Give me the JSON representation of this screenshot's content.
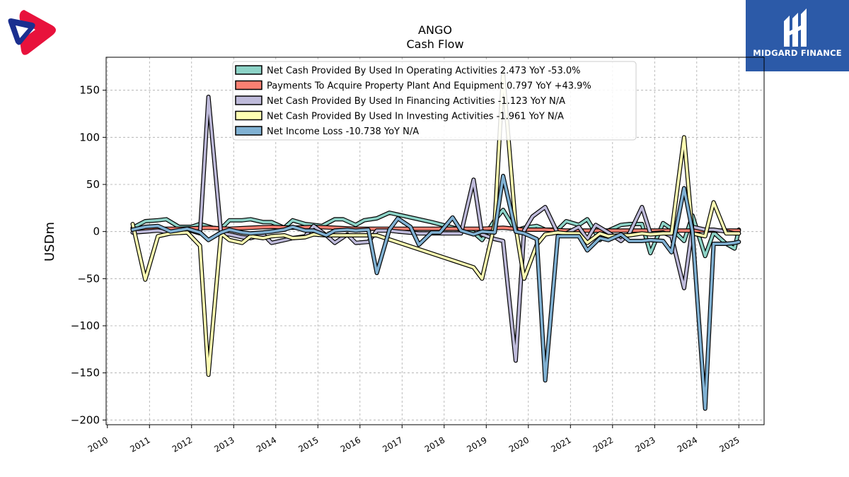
{
  "chart_data": {
    "type": "line",
    "title": "ANGO",
    "subtitle": "Cash Flow",
    "ylabel": "USDm",
    "xlabel": "",
    "xlim": [
      2009.97,
      2025.6
    ],
    "ylim": [
      -205,
      185
    ],
    "yticks": [
      150,
      100,
      50,
      0,
      -50,
      -100,
      -150,
      -200
    ],
    "ytick_labels": [
      "150",
      "100",
      "50",
      "0",
      "−50",
      "−100",
      "−150",
      "−200"
    ],
    "xticks": [
      2010,
      2011,
      2012,
      2013,
      2014,
      2015,
      2016,
      2017,
      2018,
      2019,
      2020,
      2021,
      2022,
      2023,
      2024,
      2025
    ],
    "xtick_labels": [
      "2010",
      "2011",
      "2012",
      "2013",
      "2014",
      "2015",
      "2016",
      "2017",
      "2018",
      "2019",
      "2020",
      "2021",
      "2022",
      "2023",
      "2024",
      "2025"
    ],
    "grid": true,
    "legend_position": "top-center",
    "series": [
      {
        "name": "Net Cash Provided By Used In Operating Activities",
        "legend_label": "Net Cash Provided By Used In Operating Activities  2.473 YoY -53.0%",
        "color": "#8dd3c7",
        "x": [
          2010.6,
          2010.9,
          2011.2,
          2011.4,
          2011.7,
          2012.0,
          2012.2,
          2012.5,
          2012.7,
          2012.9,
          2013.2,
          2013.4,
          2013.7,
          2013.9,
          2014.2,
          2014.4,
          2014.7,
          2014.9,
          2015.1,
          2015.4,
          2015.6,
          2015.9,
          2016.1,
          2016.4,
          2016.7,
          2016.9,
          2017.7,
          2018.4,
          2018.7,
          2018.9,
          2019.2,
          2019.4,
          2019.7,
          2019.9,
          2020.2,
          2020.4,
          2020.7,
          2020.9,
          2021.2,
          2021.4,
          2021.7,
          2021.9,
          2022.2,
          2022.4,
          2022.7,
          2022.9,
          2023.2,
          2023.4,
          2023.7,
          2023.9,
          2024.2,
          2024.4,
          2024.7,
          2024.9,
          2025.0
        ],
        "y": [
          4,
          11,
          12,
          13,
          5,
          5,
          8,
          4,
          3,
          12,
          12,
          13,
          10,
          10,
          4,
          12,
          8,
          7,
          6,
          13,
          13,
          7,
          12,
          14,
          20,
          18,
          10,
          2,
          -1,
          -9,
          12,
          23,
          1,
          4,
          6,
          2,
          2,
          11,
          7,
          13,
          -9,
          1,
          7,
          8,
          8,
          -23,
          9,
          3,
          -10,
          17,
          -26,
          -1,
          -13,
          -18,
          2
        ]
      },
      {
        "name": "Payments To Acquire Property Plant And Equipment",
        "legend_label": "Payments To Acquire Property Plant And Equipment  0.797 YoY +43.9%",
        "color": "#fb8072",
        "x": [
          2010.6,
          2011.2,
          2011.7,
          2012.4,
          2012.9,
          2013.4,
          2013.9,
          2014.4,
          2014.9,
          2015.4,
          2015.9,
          2016.4,
          2016.9,
          2017.4,
          2017.9,
          2018.4,
          2018.9,
          2019.4,
          2019.9,
          2020.4,
          2020.9,
          2021.4,
          2021.9,
          2022.4,
          2022.9,
          2023.4,
          2023.9,
          2024.4,
          2025.0
        ],
        "y": [
          3,
          3,
          3,
          4,
          3,
          4,
          5,
          4,
          5,
          4,
          3,
          3,
          3,
          3,
          3,
          3,
          3,
          4,
          2,
          2,
          1,
          1,
          1,
          1,
          1,
          1,
          1,
          1,
          1
        ]
      },
      {
        "name": "Net Cash Provided By Used In Financing Activities",
        "legend_label": "Net Cash Provided By Used In Financing Activities  -1.123 YoY N/A",
        "color": "#bebada",
        "x": [
          2010.6,
          2010.9,
          2011.2,
          2011.5,
          2011.9,
          2012.2,
          2012.4,
          2012.7,
          2012.9,
          2013.2,
          2013.4,
          2013.7,
          2013.9,
          2014.2,
          2014.4,
          2014.7,
          2014.9,
          2015.2,
          2015.4,
          2015.7,
          2015.9,
          2016.2,
          2016.4,
          2016.7,
          2016.9,
          2017.4,
          2017.9,
          2018.4,
          2018.7,
          2018.9,
          2019.2,
          2019.4,
          2019.7,
          2019.9,
          2020.1,
          2020.4,
          2020.7,
          2020.9,
          2021.2,
          2021.4,
          2021.6,
          2021.9,
          2022.2,
          2022.4,
          2022.7,
          2022.9,
          2023.2,
          2023.4,
          2023.7,
          2023.9,
          2024.2,
          2024.4,
          2024.7,
          2024.9,
          2025.0
        ],
        "y": [
          -1,
          0,
          1,
          -1,
          2,
          -2,
          143,
          -2,
          -3,
          -6,
          -7,
          -3,
          -12,
          -9,
          -7,
          -5,
          6,
          -4,
          -12,
          -3,
          -12,
          -11,
          1,
          1,
          0,
          -2,
          -2,
          -2,
          55,
          -3,
          -8,
          -10,
          -137,
          1,
          16,
          26,
          -2,
          -2,
          5,
          -8,
          7,
          -1,
          -10,
          -2,
          26,
          -2,
          -1,
          -5,
          -60,
          5,
          2,
          2,
          0,
          -2,
          -2
        ]
      },
      {
        "name": "Net Cash Provided By Used In Investing Activities",
        "legend_label": "Net Cash Provided By Used In Investing Activities  -1.961 YoY N/A",
        "color": "#ffffb3",
        "x": [
          2010.6,
          2010.9,
          2011.2,
          2011.5,
          2011.9,
          2012.2,
          2012.4,
          2012.7,
          2012.9,
          2013.2,
          2013.4,
          2013.7,
          2013.9,
          2014.2,
          2014.4,
          2014.7,
          2014.9,
          2015.2,
          2015.4,
          2015.7,
          2015.9,
          2016.4,
          2018.7,
          2018.9,
          2019.2,
          2019.4,
          2019.7,
          2019.9,
          2020.2,
          2020.4,
          2020.7,
          2020.9,
          2021.2,
          2021.4,
          2021.7,
          2021.9,
          2022.2,
          2022.4,
          2022.7,
          2022.9,
          2023.2,
          2023.4,
          2023.7,
          2023.9,
          2024.2,
          2024.4,
          2024.7,
          2024.9,
          2025.0
        ],
        "y": [
          8,
          -51,
          -5,
          -2,
          -1,
          -15,
          -152,
          -2,
          -9,
          -12,
          -5,
          -7,
          -5,
          -4,
          -7,
          -6,
          -3,
          -4,
          -4,
          -4,
          -4,
          -4,
          -38,
          -50,
          8,
          168,
          5,
          -50,
          -14,
          -3,
          -1,
          -2,
          -2,
          -12,
          -2,
          -5,
          -4,
          -4,
          -2,
          -3,
          -2,
          -2,
          100,
          -2,
          -5,
          31,
          -2,
          -2,
          -2
        ]
      },
      {
        "name": "Net Income Loss",
        "legend_label": "Net Income Loss  -10.738 YoY N/A",
        "color": "#80b1d3",
        "x": [
          2010.6,
          2010.9,
          2011.2,
          2011.5,
          2011.9,
          2012.2,
          2012.4,
          2012.7,
          2012.9,
          2013.2,
          2013.4,
          2013.7,
          2013.9,
          2014.2,
          2014.4,
          2014.7,
          2014.9,
          2015.2,
          2015.4,
          2015.7,
          2015.9,
          2016.2,
          2016.4,
          2016.7,
          2016.9,
          2017.2,
          2017.4,
          2017.7,
          2017.9,
          2018.2,
          2018.4,
          2018.7,
          2018.9,
          2019.2,
          2019.4,
          2019.7,
          2019.9,
          2020.2,
          2020.4,
          2020.7,
          2020.9,
          2021.2,
          2021.4,
          2021.7,
          2021.9,
          2022.2,
          2022.4,
          2022.7,
          2022.9,
          2023.2,
          2023.4,
          2023.7,
          2023.9,
          2024.2,
          2024.4,
          2024.7,
          2024.9,
          2025.0
        ],
        "y": [
          2,
          5,
          6,
          0,
          3,
          -1,
          -9,
          -1,
          2,
          -1,
          -2,
          -1,
          0,
          2,
          5,
          1,
          1,
          -4,
          1,
          2,
          1,
          2,
          -44,
          2,
          14,
          5,
          -14,
          -1,
          -1,
          15,
          1,
          -3,
          0,
          -1,
          59,
          0,
          -2,
          -8,
          -158,
          -5,
          -5,
          -5,
          -20,
          -7,
          -9,
          -3,
          -10,
          -10,
          -9,
          -10,
          -22,
          46,
          0,
          -188,
          -13,
          -13,
          -12,
          -11
        ]
      }
    ]
  },
  "brand": {
    "name": "MIDGARD FINANCE",
    "color": "#2c5aa8"
  }
}
